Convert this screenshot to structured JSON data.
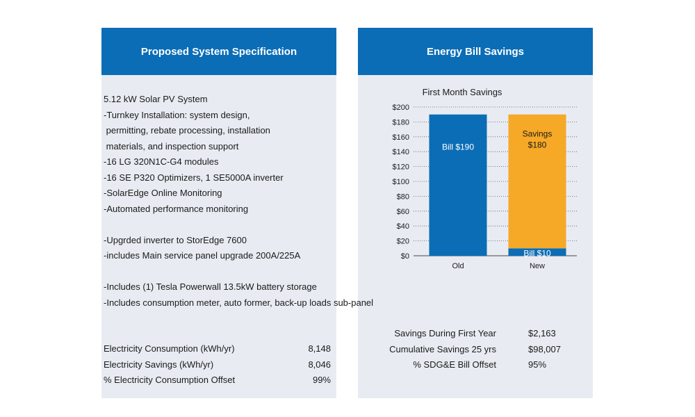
{
  "left": {
    "header": "Proposed System Specification",
    "lines": [
      "5.12 kW Solar PV System",
      "-Turnkey Installation: system design,",
      " permitting, rebate processing, installation",
      " materials, and inspection support",
      "-16 LG 320N1C-G4 modules",
      "-16 SE P320 Optimizers, 1 SE5000A inverter",
      "-SolarEdge Online Monitoring",
      "-Automated performance monitoring",
      "",
      "-Upgrded inverter to StorEdge 7600",
      "-includes Main service panel upgrade 200A/225A",
      "",
      "-Includes (1) Tesla Powerwall 13.5kW battery storage",
      "-Includes consumption meter, auto former, back-up loads sub-panel"
    ],
    "stats": [
      {
        "label": "Electricity Consumption (kWh/yr)",
        "value": "8,148"
      },
      {
        "label": "Electricity Savings (kWh/yr)",
        "value": "8,046"
      },
      {
        "label": "% Electricity Consumption Offset",
        "value": "99%"
      }
    ]
  },
  "right": {
    "header": "Energy Bill Savings",
    "stats": [
      {
        "label": "Savings During First Year",
        "value": "$2,163"
      },
      {
        "label": "Cumulative Savings 25 yrs",
        "value": "$98,007"
      },
      {
        "label": "% SDG&E Bill Offset",
        "value": "95%"
      }
    ]
  },
  "colors": {
    "header": "#0b6db6",
    "panel": "#e8ecf2",
    "bill": "#0b6db6",
    "savings": "#f6a827"
  },
  "chart_data": {
    "type": "bar",
    "stacked": true,
    "title": "First Month Savings",
    "categories": [
      "Old",
      "New"
    ],
    "series": [
      {
        "name": "Bill",
        "values": [
          190,
          10
        ],
        "labels": [
          "Bill $190",
          "Bill $10"
        ],
        "color": "#0b6db6"
      },
      {
        "name": "Savings",
        "values": [
          0,
          180
        ],
        "labels": [
          "",
          "Savings\n$180"
        ],
        "color": "#f6a827"
      }
    ],
    "ylim": [
      0,
      200
    ],
    "yticks": [
      0,
      20,
      40,
      60,
      80,
      100,
      120,
      140,
      160,
      180,
      200
    ],
    "ytick_labels": [
      "$0",
      "$20",
      "$40",
      "$60",
      "$80",
      "$100",
      "$120",
      "$140",
      "$160",
      "$180",
      "$200"
    ],
    "grid": true,
    "grid_style": "dotted"
  }
}
